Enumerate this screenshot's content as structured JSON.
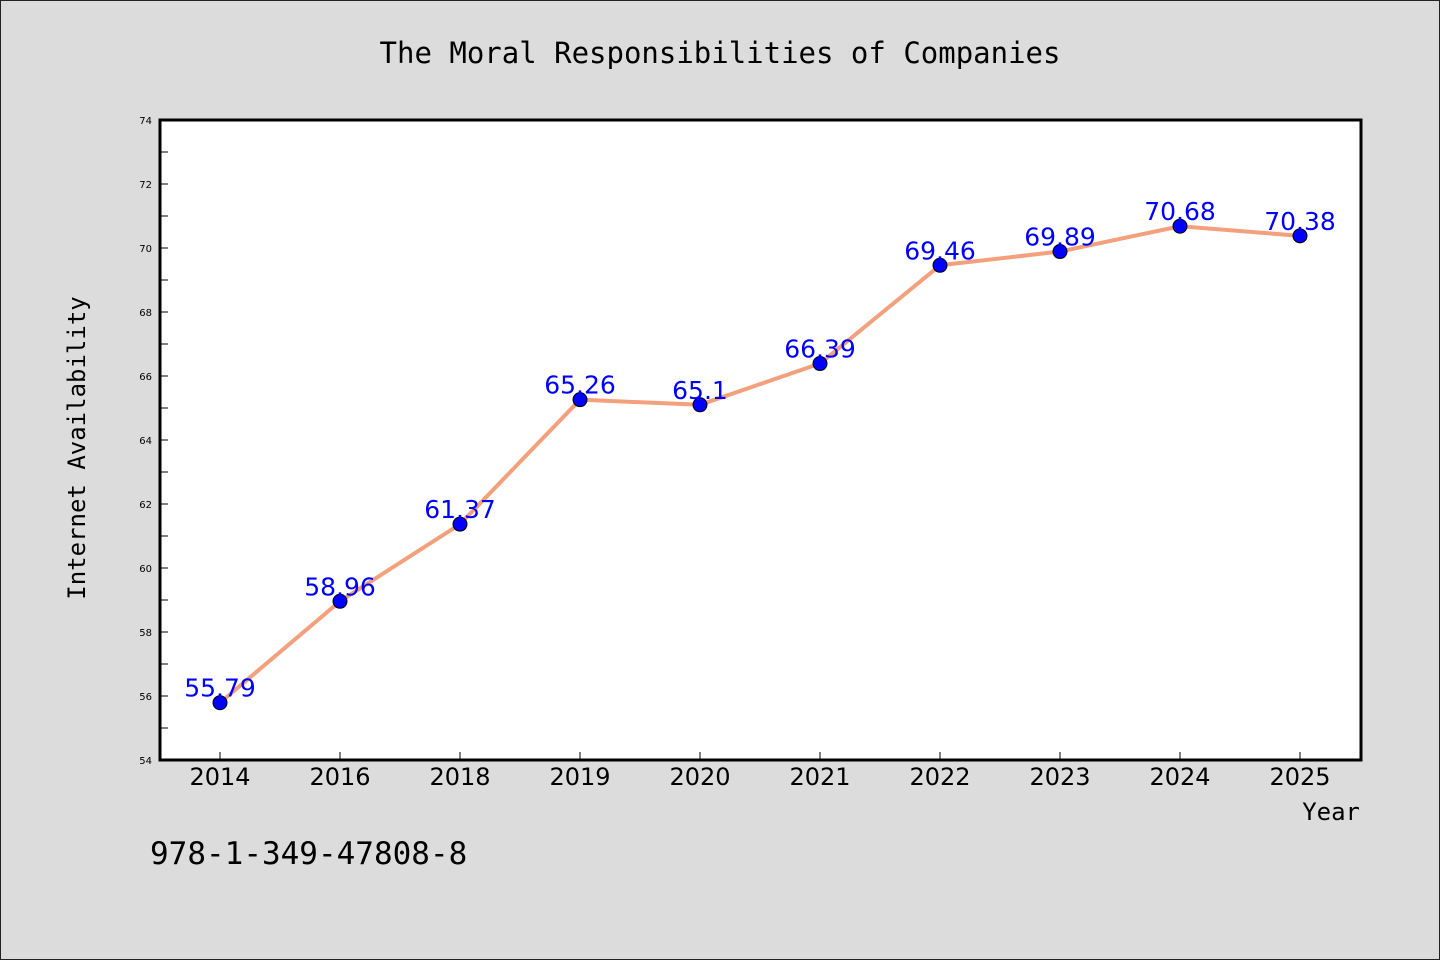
{
  "colors": {
    "background": "#dcdcdc",
    "plot_background": "#ffffff",
    "line": "#f4a07c",
    "marker": "#0000ff",
    "data_label": "#0000ff"
  },
  "footnote": "978-1-349-47808-8",
  "chart_data": {
    "type": "line",
    "title": "The Moral Responsibilities of Companies",
    "xlabel": "Year",
    "ylabel": "Internet Availability",
    "categories": [
      "2014",
      "2016",
      "2018",
      "2019",
      "2020",
      "2021",
      "2022",
      "2023",
      "2024",
      "2025"
    ],
    "series": [
      {
        "values": [
          55.79,
          58.96,
          61.37,
          65.26,
          65.1,
          66.39,
          69.46,
          69.89,
          70.68,
          70.38
        ],
        "labels": [
          "55.79",
          "58.96",
          "61.37",
          "65.26",
          "65.1",
          "66.39",
          "69.46",
          "69.89",
          "70.68",
          "70.38"
        ]
      }
    ],
    "ylim": [
      54,
      74
    ],
    "yticks": [
      54,
      56,
      58,
      60,
      62,
      64,
      66,
      68,
      70,
      72,
      74
    ],
    "grid": false,
    "legend": "none",
    "markers": "circle"
  }
}
